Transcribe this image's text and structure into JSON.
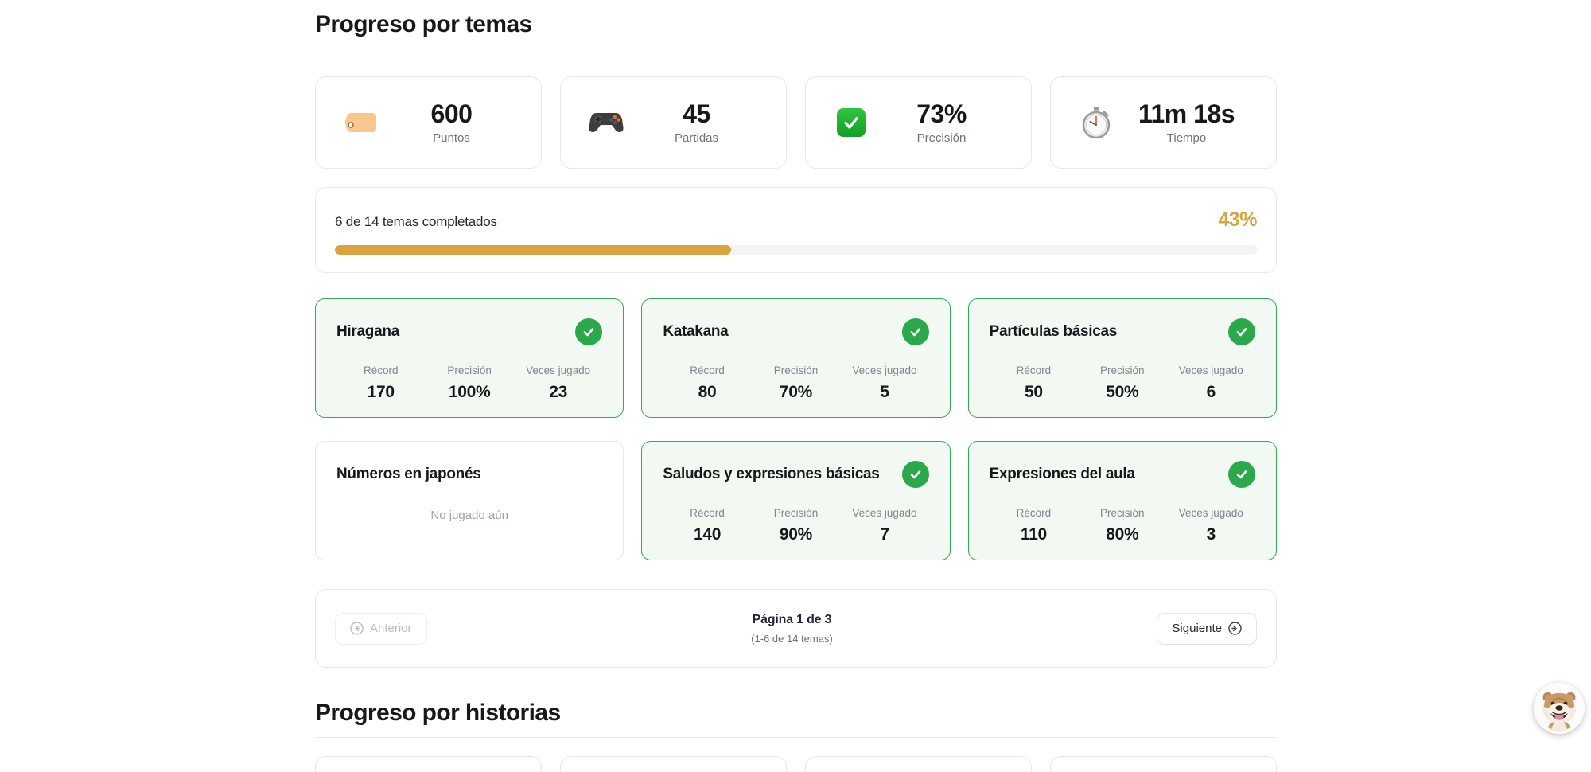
{
  "sections": {
    "temas_title": "Progreso por temas",
    "historias_title": "Progreso por historias"
  },
  "stats": [
    {
      "icon": "tag-icon",
      "value": "600",
      "label": "Puntos"
    },
    {
      "icon": "gamepad-icon",
      "value": "45",
      "label": "Partidas"
    },
    {
      "icon": "check-button-icon",
      "value": "73%",
      "label": "Precisión"
    },
    {
      "icon": "stopwatch-icon",
      "value": "11m 18s",
      "label": "Tiempo"
    }
  ],
  "overall_progress": {
    "label": "6 de 14 temas completados",
    "percent_label": "43%",
    "percent": 43
  },
  "topic_stat_labels": {
    "record": "Récord",
    "precision": "Precisión",
    "plays": "Veces jugado"
  },
  "topics": [
    {
      "title": "Hiragana",
      "completed": true,
      "record": "170",
      "precision": "100%",
      "plays": "23"
    },
    {
      "title": "Katakana",
      "completed": true,
      "record": "80",
      "precision": "70%",
      "plays": "5"
    },
    {
      "title": "Partículas básicas",
      "completed": true,
      "record": "50",
      "precision": "50%",
      "plays": "6"
    },
    {
      "title": "Números en japonés",
      "completed": false,
      "empty_text": "No jugado aún"
    },
    {
      "title": "Saludos y expresiones básicas",
      "completed": true,
      "record": "140",
      "precision": "90%",
      "plays": "7"
    },
    {
      "title": "Expresiones del aula",
      "completed": true,
      "record": "110",
      "precision": "80%",
      "plays": "3"
    }
  ],
  "pagination": {
    "prev_label": "Anterior",
    "next_label": "Siguiente",
    "page_label": "Página 1 de 3",
    "range_label": "(1-6 de 14 temas)"
  },
  "colors": {
    "accent_gold": "#d9a440",
    "success_green": "#2ba84c",
    "success_bg": "#f2f9f3",
    "card_border": "#e7e7ea"
  },
  "mascot": {
    "name": "bulldog-mascot"
  }
}
